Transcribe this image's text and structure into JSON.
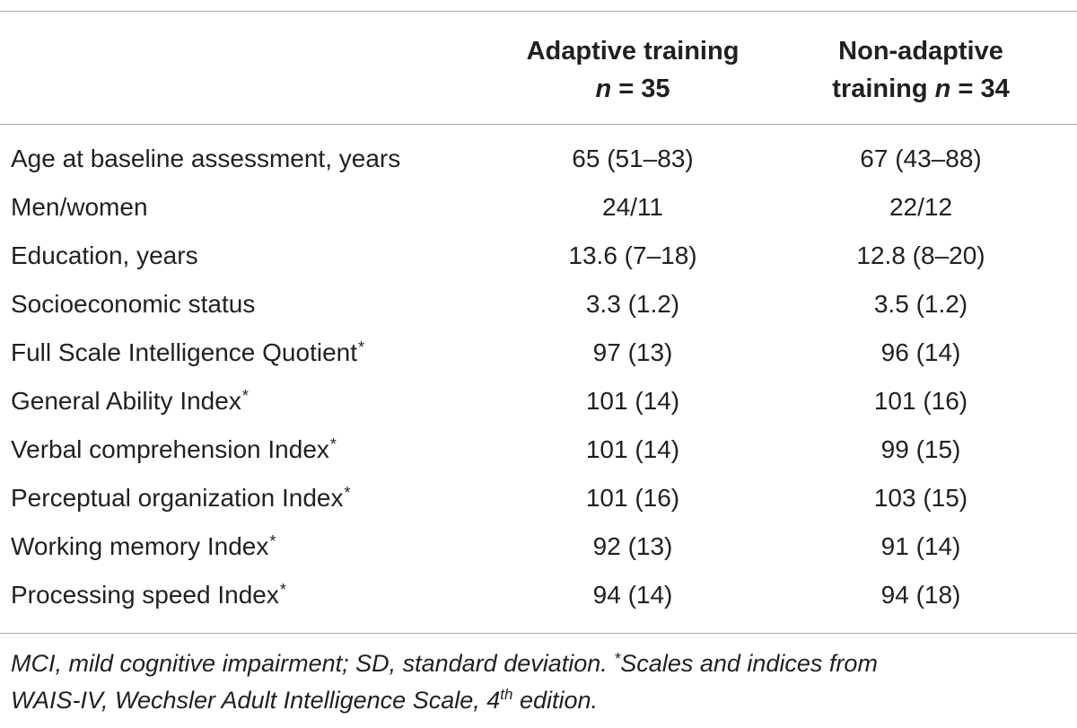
{
  "table": {
    "header": {
      "col1_line1": "Adaptive training",
      "col1_n_label": "n",
      "col1_n_rest": " = 35",
      "col2_line1": "Non-adaptive",
      "col2_line2_prefix": "training ",
      "col2_n_label": "n",
      "col2_n_rest": " = 34"
    },
    "rows": [
      {
        "label": "Age at baseline assessment, years",
        "star": "",
        "adaptive": "65 (51–83)",
        "non_adaptive": "67 (43–88)"
      },
      {
        "label": "Men/women",
        "star": "",
        "adaptive": "24/11",
        "non_adaptive": "22/12"
      },
      {
        "label": "Education, years",
        "star": "",
        "adaptive": "13.6 (7–18)",
        "non_adaptive": "12.8 (8–20)"
      },
      {
        "label": "Socioeconomic status",
        "star": "",
        "adaptive": "3.3 (1.2)",
        "non_adaptive": "3.5 (1.2)"
      },
      {
        "label": "Full Scale Intelligence Quotient",
        "star": "*",
        "adaptive": "97 (13)",
        "non_adaptive": "96 (14)"
      },
      {
        "label": "General Ability Index",
        "star": "*",
        "adaptive": "101 (14)",
        "non_adaptive": "101 (16)"
      },
      {
        "label": "Verbal comprehension Index",
        "star": "*",
        "adaptive": "101 (14)",
        "non_adaptive": "99 (15)"
      },
      {
        "label": "Perceptual organization Index",
        "star": "*",
        "adaptive": "101 (16)",
        "non_adaptive": "103 (15)"
      },
      {
        "label": "Working memory Index",
        "star": "*",
        "adaptive": "92 (13)",
        "non_adaptive": "91 (14)"
      },
      {
        "label": "Processing speed Index",
        "star": "*",
        "adaptive": "94 (14)",
        "non_adaptive": "94 (18)"
      }
    ],
    "footnote": {
      "line1_text": "MCI, mild cognitive impairment; SD, standard deviation. ",
      "line1_star": "*",
      "line1_rest": "Scales and indices from",
      "line2_pre": "WAIS-IV, Wechsler Adult Intelligence Scale, 4",
      "line2_sup": "th",
      "line2_post": " edition."
    }
  }
}
